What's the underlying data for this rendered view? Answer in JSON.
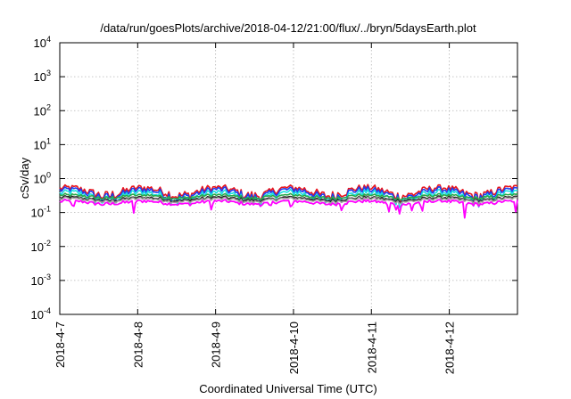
{
  "chart_data": {
    "type": "line",
    "title": "/data/run/goesPlots/archive/2018-04-12/21:00/flux/../bryn/5daysEarth.plot",
    "xlabel": "Coordinated Universal Time (UTC)",
    "ylabel": "cSv/day",
    "yscale": "log",
    "ylim": [
      0.0001,
      10000
    ],
    "y_ticks": [
      {
        "value": 0.0001,
        "base": "10",
        "exp": "-4"
      },
      {
        "value": 0.001,
        "base": "10",
        "exp": "-3"
      },
      {
        "value": 0.01,
        "base": "10",
        "exp": "-2"
      },
      {
        "value": 0.1,
        "base": "10",
        "exp": "-1"
      },
      {
        "value": 1,
        "base": "10",
        "exp": "0"
      },
      {
        "value": 10,
        "base": "10",
        "exp": "1"
      },
      {
        "value": 100,
        "base": "10",
        "exp": "2"
      },
      {
        "value": 1000,
        "base": "10",
        "exp": "3"
      },
      {
        "value": 10000,
        "base": "10",
        "exp": "4"
      }
    ],
    "x_range_days": [
      "2018-4-7",
      "2018-4-12 21:00"
    ],
    "x_tick_labels": [
      "2018-4-7",
      "2018-4-8",
      "2018-4-9",
      "2018-4-10",
      "2018-4-11",
      "2018-4-12"
    ],
    "grid": true,
    "series": [
      {
        "color": "#e8141c",
        "level": 0.55
      },
      {
        "color": "#1f3df0",
        "level": 0.48
      },
      {
        "color": "#19e0e0",
        "level": 0.4
      },
      {
        "color": "#2aa84a",
        "level": 0.33
      },
      {
        "color": "#222222",
        "level": 0.28
      },
      {
        "color": "#a0a0a0",
        "level": 0.26
      },
      {
        "color": "#ff00ff",
        "level": 0.22
      }
    ]
  }
}
